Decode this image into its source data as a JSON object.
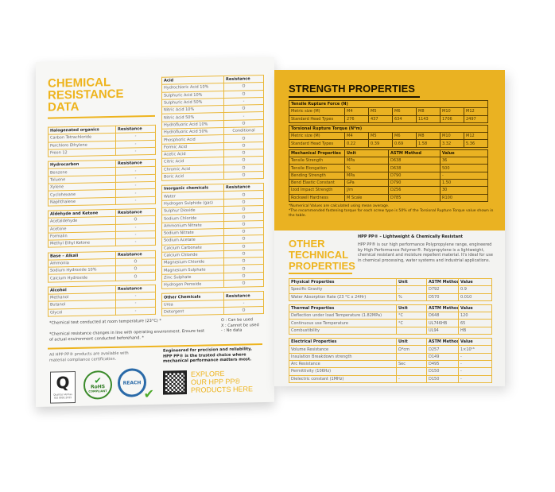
{
  "left": {
    "title": [
      "CHEMICAL",
      "RESISTANCE",
      "DATA"
    ],
    "col1": [
      {
        "header": [
          "Halogenated organics",
          "Resistance"
        ],
        "rows": [
          [
            "Carbon Tetrachloride",
            "-"
          ],
          [
            "Perchloro Ethylene",
            "-"
          ],
          [
            "Freon 12",
            "-"
          ]
        ]
      },
      {
        "header": [
          "Hydrocarbon",
          "Resistance"
        ],
        "rows": [
          [
            "Benzene",
            "-"
          ],
          [
            "Toluene",
            "-"
          ],
          [
            "Xylene",
            "-"
          ],
          [
            "Cyclohexane",
            "-"
          ],
          [
            "Naphthalene",
            "-"
          ]
        ]
      },
      {
        "header": [
          "Aldehyde and Ketone",
          "Resistance"
        ],
        "rows": [
          [
            "Acetaldehyde",
            "O"
          ],
          [
            "Acetone",
            "-"
          ],
          [
            "Formalin",
            "-"
          ],
          [
            "Methyl Ethyl Ketone",
            "-"
          ]
        ]
      },
      {
        "header": [
          "Base – Alkali",
          "Resistance"
        ],
        "rows": [
          [
            "Ammonia",
            "O"
          ],
          [
            "Sodium Hydroxide 10%",
            "O"
          ],
          [
            "Calcium Hydroxide",
            "O"
          ]
        ]
      },
      {
        "header": [
          "Alcohol",
          "Resistance"
        ],
        "rows": [
          [
            "Methanol",
            "-"
          ],
          [
            "Butanol",
            "-"
          ],
          [
            "Glycol",
            "-"
          ]
        ]
      }
    ],
    "col2": [
      {
        "header": [
          "Acid",
          "Resistance"
        ],
        "rows": [
          [
            "Hydrochloric Acid 10%",
            "O"
          ],
          [
            "Sulphuric Acid 10%",
            "O"
          ],
          [
            "Sulphuric Acid 50%",
            "-"
          ],
          [
            "Nitric Acid 10%",
            "O"
          ],
          [
            "Nitric Acid 50%",
            "-"
          ],
          [
            "Hydrofluoric Acid 10%",
            "O"
          ],
          [
            "Hydrofluoric Acid 50%",
            "Conditional"
          ],
          [
            "Phosphoric Acid",
            "O"
          ],
          [
            "Formic Acid",
            "O"
          ],
          [
            "Acetic Acid",
            "O"
          ],
          [
            "Citric Acid",
            "O"
          ],
          [
            "Chromic Acid",
            "O"
          ],
          [
            "Boric Acid",
            "O"
          ]
        ]
      },
      {
        "header": [
          "Inorganic chemicals",
          "Resistance"
        ],
        "rows": [
          [
            "Water",
            "O"
          ],
          [
            "Hydrogen Sulphide (gas)",
            "O"
          ],
          [
            "Sulphur Dioxide",
            "O"
          ],
          [
            "Sodium Chloride",
            "O"
          ],
          [
            "Ammonium Nitrate",
            "O"
          ],
          [
            "Sodium Nitrate",
            "O"
          ],
          [
            "Sodium Acetate",
            "O"
          ],
          [
            "Calcium Carbonate",
            "O"
          ],
          [
            "Calcium Chloride",
            "O"
          ],
          [
            "Magnesium Chloride",
            "O"
          ],
          [
            "Magnesium Sulphate",
            "O"
          ],
          [
            "Zinc Sulphate",
            "O"
          ],
          [
            "Hydrogen Peroxide",
            "O"
          ]
        ]
      },
      {
        "header": [
          "Other Chemicals",
          "Resistance"
        ],
        "rows": [
          [
            "Urea",
            "-"
          ],
          [
            "Detergent",
            "O"
          ]
        ]
      }
    ],
    "note1": "*Chemical test conducted at room temperature (23°C) *",
    "note2": "*Chemical resistance changes in line with operating environment. Ensure test of actual environment conducted beforehand. *",
    "legend": [
      "O : Can be used",
      "X : Cannot be used",
      "- : No data"
    ],
    "compliance": "All HPP PP® products are available with material compliance certification.",
    "badges": {
      "iso": "ISO 9001:2015",
      "iso_text": "Qualitas Veritas",
      "rohs": "RoHS",
      "rohs_sub": "COMPLIANT",
      "reach": "REACH"
    },
    "tagline": "Engineered for precision and reliability, HPP PP® is the trusted choice where mechanical performance matters most.",
    "cta": [
      "EXPLORE",
      "OUR HPP PP®",
      "PRODUCTS HERE"
    ]
  },
  "right": {
    "strength_title": "STRENGTH PROPERTIES",
    "tensile": {
      "title": "Tensile Rupture Force (N)",
      "rows": [
        [
          "Metric size (M)",
          "M4",
          "M5",
          "M6",
          "M8",
          "M10",
          "M12"
        ],
        [
          "Standard Head Types",
          "276",
          "437",
          "634",
          "1143",
          "1706",
          "2497"
        ]
      ]
    },
    "torsional": {
      "title": "Torsional Rupture Torque (N*m)",
      "rows": [
        [
          "Metric size (M)",
          "M4",
          "M5",
          "M6",
          "M8",
          "M10",
          "M12"
        ],
        [
          "Standard Head Types",
          "0.22",
          "0.39",
          "0.69",
          "1.58",
          "3.32",
          "5.36"
        ]
      ]
    },
    "mechanical": {
      "header": [
        "Mechanical Properties",
        "Unit",
        "ASTM Method",
        "Value"
      ],
      "rows": [
        [
          "Tensile Strength",
          "MPa",
          "D638",
          "36"
        ],
        [
          "Tensile Elongation",
          "%",
          "D638",
          "500"
        ],
        [
          "Bending Strength",
          "MPa",
          "D790",
          "-"
        ],
        [
          "Bend Elastic Constant",
          "GPa",
          "D790",
          "1.50"
        ],
        [
          "Izod Impact Strength",
          "J/m",
          "D256",
          "30"
        ],
        [
          "Rockwell Hardness",
          "M Scale",
          "D785",
          "R100"
        ]
      ]
    },
    "notes": [
      "*Numerical Values are calculated using mean average.",
      "*The recommended fastening torque for each screw type is 50% of the Torsional Rupture Torque value shown in the table."
    ],
    "other_title": [
      "OTHER",
      "TECHNICAL",
      "PROPERTIES"
    ],
    "subtitle": "HPP PP® – Lightweight & Chemically Resistant",
    "description": "HPP PP® is our high performance Polypropylene range, engineered by High Performance Polymer®. Polypropylene is a lightweight, chemical resistant and moisture repellent material. It's ideal for use in chemical processing, water systems and industrial applications.",
    "physical": {
      "header": [
        "Physical Properties",
        "Unit",
        "ASTM Method",
        "Value"
      ],
      "rows": [
        [
          "Specific Gravity",
          "-",
          "D792",
          "0.9"
        ],
        [
          "Water Absorption Rate (23 °C x 24Hr)",
          "%",
          "D570",
          "0.010"
        ]
      ]
    },
    "thermal": {
      "header": [
        "Thermal Properties",
        "Unit",
        "ASTM Method",
        "Value"
      ],
      "rows": [
        [
          "Deflection under load Temperature (1.82MPa)",
          "°C",
          "D648",
          "120"
        ],
        [
          "Continuous use Temperature",
          "°C",
          "UL746HB",
          "65"
        ],
        [
          "Combustibility",
          "",
          "UL94",
          "HB"
        ]
      ]
    },
    "electrical": {
      "header": [
        "Electrical Properties",
        "Unit",
        "ASTM Method",
        "Value"
      ],
      "rows": [
        [
          "Volume Resistance",
          "Ω*cm",
          "D257",
          "1×10¹⁶"
        ],
        [
          "Insulation Breakdown strength",
          "",
          "D149",
          "-"
        ],
        [
          "Arc Resistance",
          "Sec",
          "D495",
          "-"
        ],
        [
          "Permittivity (106Hz)",
          "",
          "D150",
          "-"
        ],
        [
          "Dielectric constant (1MHz)",
          "-",
          "D150",
          "-"
        ]
      ]
    }
  },
  "colors": {
    "accent": "#eab222",
    "border": "#eab83a"
  }
}
